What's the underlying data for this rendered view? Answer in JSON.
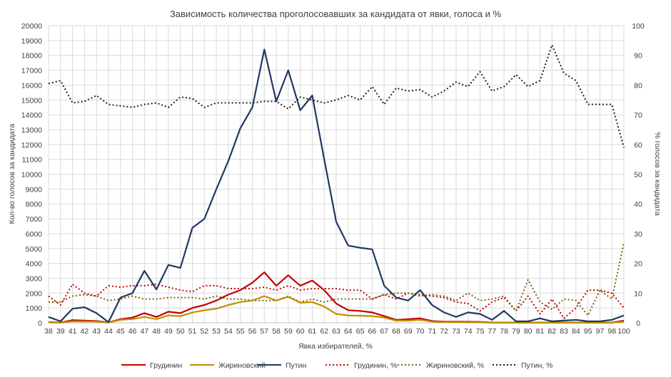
{
  "chart_data": {
    "type": "line",
    "title": "Зависимость количества проголосовавших за кандидата от явки, голоса и %",
    "xlabel": "Явка избирателей, %",
    "ylabel": "Кол-во голосов за кандидата",
    "y2label": "% голосов за кандидата",
    "ylim": [
      0,
      20000
    ],
    "y2lim": [
      0,
      100
    ],
    "yticks": [
      "0",
      "1000",
      "2000",
      "3000",
      "4000",
      "5000",
      "6000",
      "7000",
      "8000",
      "9000",
      "10000",
      "11000",
      "12000",
      "13000",
      "14000",
      "15000",
      "16000",
      "17000",
      "18000",
      "19000",
      "20000"
    ],
    "y2ticks": [
      "0",
      "10",
      "20",
      "30",
      "40",
      "50",
      "60",
      "70",
      "80",
      "90",
      "100"
    ],
    "grid": true,
    "legend_position": "bottom",
    "categories": [
      "38",
      "39",
      "41",
      "42",
      "43",
      "44",
      "45",
      "46",
      "47",
      "48",
      "49",
      "50",
      "51",
      "52",
      "53",
      "54",
      "55",
      "56",
      "57",
      "58",
      "59",
      "60",
      "61",
      "62",
      "63",
      "64",
      "65",
      "66",
      "67",
      "68",
      "69",
      "70",
      "71",
      "72",
      "73",
      "74",
      "75",
      "77",
      "78",
      "79",
      "80",
      "81",
      "82",
      "83",
      "84",
      "95",
      "97",
      "98",
      "100"
    ],
    "series": [
      {
        "name": "Грудинин",
        "axis": "left",
        "color": "#c00000",
        "dash": "solid",
        "values": [
          50,
          20,
          180,
          150,
          120,
          30,
          250,
          350,
          650,
          400,
          750,
          650,
          1000,
          1200,
          1500,
          1900,
          2200,
          2700,
          3400,
          2500,
          3200,
          2500,
          2850,
          2200,
          1300,
          850,
          800,
          700,
          450,
          200,
          250,
          300,
          120,
          80,
          80,
          70,
          60,
          20,
          20,
          20,
          20,
          20,
          20,
          20,
          20,
          20,
          20,
          20,
          150
        ]
      },
      {
        "name": "Жириновский",
        "axis": "left",
        "color": "#bf9000",
        "dash": "solid",
        "values": [
          30,
          10,
          100,
          90,
          80,
          20,
          200,
          250,
          400,
          250,
          500,
          450,
          700,
          850,
          950,
          1200,
          1400,
          1500,
          1800,
          1500,
          1750,
          1350,
          1400,
          1100,
          600,
          500,
          480,
          450,
          350,
          150,
          150,
          200,
          80,
          50,
          50,
          40,
          40,
          10,
          10,
          10,
          10,
          10,
          10,
          10,
          10,
          10,
          10,
          10,
          80
        ]
      },
      {
        "name": "Путин",
        "axis": "left",
        "color": "#1f3864",
        "dash": "solid",
        "values": [
          400,
          100,
          950,
          1050,
          650,
          50,
          1700,
          2000,
          3500,
          2250,
          3900,
          3700,
          6400,
          7000,
          9000,
          10900,
          13100,
          14500,
          18400,
          14900,
          17000,
          14300,
          15300,
          11000,
          6800,
          5200,
          5050,
          4950,
          2500,
          1700,
          1500,
          2200,
          1200,
          700,
          400,
          700,
          600,
          200,
          800,
          100,
          100,
          300,
          100,
          150,
          200,
          100,
          100,
          200,
          500
        ]
      },
      {
        "name": "Грудинин, %",
        "axis": "right",
        "color": "#c00000",
        "dash": "dot",
        "values": [
          9,
          6,
          13,
          10,
          9,
          12.5,
          12,
          12.5,
          12.5,
          13,
          12,
          11,
          10.5,
          12.5,
          12.5,
          11.5,
          11.5,
          11.5,
          12,
          11,
          12.5,
          11,
          11.5,
          11.5,
          11.5,
          11,
          11,
          8,
          9.5,
          8,
          10,
          9.5,
          9,
          8.5,
          7,
          6.5,
          4,
          7,
          8.5,
          4,
          9,
          3,
          8,
          1.5,
          5,
          11,
          11,
          10,
          5
        ]
      },
      {
        "name": "Жириновский, %",
        "axis": "right",
        "color": "#7f6000",
        "dash": "dot",
        "values": [
          7,
          7,
          9,
          9.5,
          9,
          7.5,
          8,
          9,
          8,
          8,
          8.5,
          8.5,
          8.5,
          8,
          9,
          8,
          8,
          7.5,
          7.5,
          7.5,
          9,
          7,
          8,
          7,
          8,
          8,
          8,
          8,
          9.5,
          10,
          10,
          9,
          9.5,
          9,
          7.5,
          10,
          7.5,
          8,
          9,
          4,
          14.5,
          7,
          4.5,
          8,
          7.5,
          2.5,
          11,
          8,
          27
        ]
      },
      {
        "name": "Путин, %",
        "axis": "right",
        "color": "#1f1f1f",
        "dash": "dot",
        "values": [
          80.5,
          81.5,
          74,
          74.5,
          76.5,
          73.5,
          73,
          72.5,
          73.5,
          74,
          72.5,
          76,
          75.5,
          72.5,
          74,
          74,
          74,
          74,
          74.5,
          74.5,
          72,
          76,
          75,
          74,
          75,
          76.5,
          75,
          79.5,
          73.5,
          79,
          78,
          78.5,
          76,
          78,
          81,
          79.5,
          84.5,
          78,
          79.5,
          83.5,
          79.5,
          81.5,
          93.5,
          84,
          81.5,
          73.5,
          73.5,
          73.5,
          59
        ]
      }
    ]
  }
}
